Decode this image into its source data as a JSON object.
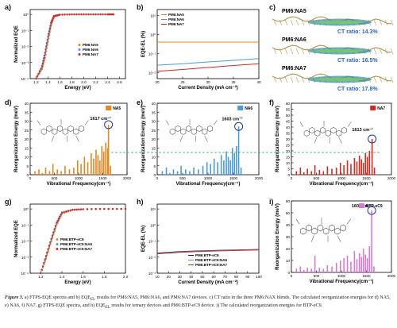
{
  "panels": {
    "a": {
      "label": "a)",
      "ylabel": "Normalized EQE",
      "xlabel": "Energy (eV)",
      "xticks": [
        "1.2",
        "1.4",
        "1.6",
        "1.8",
        "2.0",
        "2.2",
        "2.4",
        "2.6"
      ],
      "yticks": [
        "10⁰",
        "10⁻¹",
        "10⁻²",
        "10⁻³",
        "10⁻⁴"
      ],
      "legend": [
        "PM6:NA5",
        "PM6:NA6",
        "PM6:NA7"
      ]
    },
    "b": {
      "label": "b)",
      "ylabel": "EQE-EL (%)",
      "xlabel": "Current Density (mA cm⁻²)",
      "xticks": [
        "20",
        "25",
        "30",
        "35",
        "40"
      ],
      "yticks": [
        "10¹",
        "10⁰",
        "10⁻¹",
        "10⁻²"
      ],
      "legend": [
        "PM6:NA5",
        "PM6:NA6",
        "PM6:NA7"
      ]
    },
    "c": {
      "label": "c)",
      "items": [
        {
          "name": "PM6:NA5",
          "ratio": "CT ratio: 14.3%"
        },
        {
          "name": "PM6:NA6",
          "ratio": "CT ratio: 16.5%"
        },
        {
          "name": "PM6:NA7",
          "ratio": "CT ratio: 17.8%"
        }
      ]
    },
    "d": {
      "label": "d)",
      "tag": "NA5",
      "annotation": "1617 cm⁻¹",
      "ylabel": "Reorganization Energy (meV)",
      "xlabel": "Vibrational Frequency(cm⁻¹)",
      "yticks": [
        "0",
        "5",
        "10",
        "15",
        "20",
        "25",
        "30",
        "35",
        "40"
      ],
      "xticks": [
        "0",
        "500",
        "1000",
        "1500",
        "2000"
      ]
    },
    "e": {
      "label": "e)",
      "tag": "NA6",
      "annotation": "1603 cm⁻¹",
      "ylabel": "Reorganization Energy (meV)",
      "xlabel": "Vibrational Frequency(cm⁻¹)",
      "yticks": [
        "0",
        "5",
        "10",
        "15",
        "20",
        "25",
        "30",
        "35",
        "40"
      ],
      "xticks": [
        "0",
        "500",
        "1000",
        "1500",
        "2000"
      ]
    },
    "f": {
      "label": "f)",
      "tag": "NA7",
      "annotation": "1613 cm⁻¹",
      "ylabel": "Reorganization Energy (meV)",
      "xlabel": "Vibrational Frequency(cm⁻¹)",
      "yticks": [
        "0",
        "5",
        "10",
        "15",
        "20",
        "25",
        "30",
        "35",
        "40",
        "45",
        "50",
        "55",
        "60"
      ],
      "xticks": [
        "0",
        "500",
        "1000",
        "1500",
        "2000"
      ]
    },
    "g": {
      "label": "g)",
      "ylabel": "Normalized EQE",
      "xlabel": "Energy (eV)",
      "xticks": [
        "1.2",
        "1.4",
        "1.6",
        "1.8",
        "2.0"
      ],
      "yticks": [
        "10⁰",
        "10⁻¹",
        "10⁻²",
        "10⁻³",
        "10⁻⁴"
      ],
      "legend": [
        "PM6:BTP-eC9",
        "PM6:BTP-eC9:NA6",
        "PM6:BTP-eC9:NA7"
      ]
    },
    "h": {
      "label": "h)",
      "ylabel": "EQE-EL (%)",
      "xlabel": "Current Density (mA cm⁻²)",
      "xticks": [
        "10",
        "20",
        "30",
        "40",
        "50",
        "60",
        "70",
        "80",
        "90",
        "100"
      ],
      "yticks": [
        "10¹",
        "10⁰",
        "10⁻¹",
        "10⁻²",
        "10⁻³"
      ],
      "legend": [
        "PM6:BTP-eC9",
        "PM6:BTP-eC9:NA6",
        "PM6:BTP-eC9:NA7"
      ]
    },
    "i": {
      "label": "i)",
      "tag": "BTP-eC9",
      "annotation": "1605 cm⁻¹",
      "ylabel": "Reorganization Energy (meV)",
      "xlabel": "Vibrational Frequency(cm⁻¹)",
      "yticks": [
        "0",
        "10",
        "20",
        "30",
        "40",
        "50",
        "60"
      ],
      "xticks": [
        "0",
        "500",
        "1000",
        "1500",
        "2000"
      ]
    }
  },
  "colors": {
    "na5": "#e8851d",
    "na6": "#4a9bdc",
    "na7": "#d9281c",
    "eC9": "#d77ad6",
    "eC9_line": "#222222",
    "ref_line": "#3aa14a"
  },
  "caption": {
    "fig": "Figure 3.",
    "text": " a) FTPS-EQE spectra and b) EQE",
    "sub": "EL",
    "text2": " results for PM6:NA5, PM6:NA6, and PM6:NA7 devices. c) CT ratio in the three PM6:NAX blends. The calculated reorganization energies for d) NA5, e) NA6, f) NA7. g) FTPS-EQE spectra, and h) EQE",
    "sub2": "EL",
    "text3": " results for ternary devices and PM6:BTP-eC9 device. i) The calculated reorganization energies for BTP-eC9."
  },
  "chart_data": [
    {
      "type": "line",
      "title": "",
      "xlabel": "Energy (eV)",
      "ylabel": "Normalized EQE",
      "log_y": true,
      "xlim": [
        1.1,
        2.7
      ],
      "ylim": [
        0.0001,
        2
      ],
      "series": [
        {
          "name": "PM6:NA5",
          "x": [
            1.2,
            1.3,
            1.35,
            1.4,
            1.45,
            1.5,
            1.6,
            1.8,
            2.0,
            2.2,
            2.4,
            2.5
          ],
          "y": [
            0.0001,
            0.0004,
            0.002,
            0.02,
            0.2,
            0.7,
            0.95,
            1,
            1,
            1,
            1,
            1
          ]
        },
        {
          "name": "PM6:NA6",
          "x": [
            1.2,
            1.3,
            1.35,
            1.4,
            1.45,
            1.5,
            1.6,
            1.8,
            2.0,
            2.2,
            2.4,
            2.5
          ],
          "y": [
            0.0001,
            0.0005,
            0.003,
            0.03,
            0.25,
            0.75,
            0.95,
            1,
            1,
            1,
            1,
            1
          ]
        },
        {
          "name": "PM6:NA7",
          "x": [
            1.2,
            1.3,
            1.35,
            1.4,
            1.45,
            1.5,
            1.6,
            1.8,
            2.0,
            2.2,
            2.4,
            2.5
          ],
          "y": [
            0.0001,
            0.0006,
            0.004,
            0.04,
            0.3,
            0.8,
            0.95,
            1,
            1,
            1,
            1,
            1
          ]
        }
      ]
    },
    {
      "type": "line",
      "title": "",
      "xlabel": "Current Density (mA cm⁻²)",
      "ylabel": "EQE-EL (%)",
      "log_y": true,
      "xlim": [
        20,
        40
      ],
      "ylim": [
        0.005,
        20
      ],
      "series": [
        {
          "name": "PM6:NA5",
          "x": [
            20,
            25,
            30,
            35,
            40
          ],
          "y": [
            0.4,
            0.4,
            0.4,
            0.4,
            0.4
          ]
        },
        {
          "name": "PM6:NA6",
          "x": [
            20,
            25,
            30,
            35,
            40
          ],
          "y": [
            0.025,
            0.03,
            0.037,
            0.045,
            0.055
          ]
        },
        {
          "name": "PM6:NA7",
          "x": [
            20,
            25,
            30,
            35,
            40
          ],
          "y": [
            0.012,
            0.015,
            0.019,
            0.024,
            0.03
          ]
        }
      ]
    },
    {
      "type": "bar",
      "name": "NA5",
      "xlabel": "Vibrational Frequency(cm⁻¹)",
      "ylabel": "Reorganization Energy (meV)",
      "xlim": [
        0,
        2000
      ],
      "ylim": [
        0,
        40
      ],
      "x": [
        100,
        180,
        250,
        320,
        400,
        470,
        560,
        640,
        720,
        810,
        900,
        980,
        1050,
        1120,
        1190,
        1260,
        1310,
        1360,
        1400,
        1440,
        1480,
        1520,
        1560,
        1600,
        1617,
        1660
      ],
      "values": [
        2,
        3,
        1,
        4,
        2,
        6,
        3,
        2,
        5,
        3,
        4,
        8,
        6,
        10,
        7,
        12,
        9,
        14,
        11,
        8,
        16,
        13,
        18,
        15,
        28,
        5
      ]
    },
    {
      "type": "bar",
      "name": "NA6",
      "xlabel": "Vibrational Frequency(cm⁻¹)",
      "ylabel": "Reorganization Energy (meV)",
      "xlim": [
        0,
        2000
      ],
      "ylim": [
        0,
        40
      ],
      "x": [
        100,
        180,
        250,
        320,
        400,
        470,
        560,
        640,
        720,
        810,
        900,
        980,
        1050,
        1120,
        1190,
        1260,
        1310,
        1360,
        1400,
        1440,
        1480,
        1520,
        1560,
        1603,
        1650
      ],
      "values": [
        2,
        4,
        1,
        3,
        2,
        5,
        3,
        2,
        4,
        3,
        5,
        7,
        6,
        9,
        7,
        11,
        8,
        13,
        10,
        8,
        15,
        12,
        16,
        27,
        4
      ]
    },
    {
      "type": "bar",
      "name": "NA7",
      "xlabel": "Vibrational Frequency(cm⁻¹)",
      "ylabel": "Reorganization Energy (meV)",
      "xlim": [
        0,
        2000
      ],
      "ylim": [
        0,
        60
      ],
      "x": [
        100,
        180,
        250,
        320,
        400,
        470,
        560,
        640,
        720,
        810,
        900,
        980,
        1050,
        1120,
        1190,
        1260,
        1310,
        1360,
        1400,
        1440,
        1480,
        1520,
        1560,
        1613,
        1660
      ],
      "values": [
        3,
        6,
        2,
        5,
        3,
        8,
        4,
        3,
        7,
        5,
        6,
        10,
        8,
        12,
        9,
        14,
        11,
        16,
        13,
        10,
        18,
        15,
        20,
        30,
        6
      ]
    },
    {
      "type": "line",
      "title": "",
      "xlabel": "Energy (eV)",
      "ylabel": "Normalized EQE",
      "log_y": true,
      "xlim": [
        1.1,
        2.0
      ],
      "ylim": [
        0.0001,
        2
      ],
      "series": [
        {
          "name": "PM6:BTP-eC9",
          "x": [
            1.2,
            1.25,
            1.3,
            1.35,
            1.4,
            1.5,
            1.6,
            1.8,
            2.0
          ],
          "y": [
            0.0001,
            0.0008,
            0.01,
            0.1,
            0.5,
            0.85,
            0.95,
            1,
            1
          ]
        },
        {
          "name": "PM6:BTP-eC9:NA6",
          "x": [
            1.2,
            1.25,
            1.3,
            1.35,
            1.4,
            1.5,
            1.6,
            1.8,
            2.0
          ],
          "y": [
            0.0001,
            0.001,
            0.012,
            0.12,
            0.55,
            0.87,
            0.95,
            1,
            1
          ]
        },
        {
          "name": "PM6:BTP-eC9:NA7",
          "x": [
            1.2,
            1.25,
            1.3,
            1.35,
            1.4,
            1.5,
            1.6,
            1.8,
            2.0
          ],
          "y": [
            0.0001,
            0.0012,
            0.014,
            0.14,
            0.6,
            0.9,
            0.96,
            1,
            1
          ]
        }
      ]
    },
    {
      "type": "line",
      "title": "",
      "xlabel": "Current Density (mA cm⁻²)",
      "ylabel": "EQE-EL (%)",
      "log_y": true,
      "xlim": [
        10,
        100
      ],
      "ylim": [
        0.001,
        20
      ],
      "series": [
        {
          "name": "PM6:BTP-eC9",
          "x": [
            10,
            30,
            50,
            70,
            100
          ],
          "y": [
            0.018,
            0.022,
            0.025,
            0.027,
            0.03
          ]
        },
        {
          "name": "PM6:BTP-eC9:NA6",
          "x": [
            10,
            30,
            50,
            70,
            100
          ],
          "y": [
            0.017,
            0.021,
            0.024,
            0.026,
            0.029
          ]
        },
        {
          "name": "PM6:BTP-eC9:NA7",
          "x": [
            10,
            30,
            50,
            70,
            100
          ],
          "y": [
            0.016,
            0.02,
            0.023,
            0.025,
            0.028
          ]
        }
      ]
    },
    {
      "type": "bar",
      "name": "BTP-eC9",
      "xlabel": "Vibrational Frequency(cm⁻¹)",
      "ylabel": "Reorganization Energy (meV)",
      "xlim": [
        0,
        2000
      ],
      "ylim": [
        0,
        60
      ],
      "x": [
        100,
        180,
        250,
        320,
        400,
        470,
        560,
        640,
        720,
        810,
        900,
        980,
        1050,
        1120,
        1190,
        1260,
        1310,
        1360,
        1400,
        1440,
        1480,
        1520,
        1560,
        1605,
        1650
      ],
      "values": [
        3,
        5,
        2,
        4,
        3,
        14,
        4,
        3,
        6,
        5,
        8,
        10,
        12,
        14,
        9,
        18,
        11,
        16,
        13,
        20,
        15,
        12,
        22,
        52,
        5
      ]
    }
  ]
}
